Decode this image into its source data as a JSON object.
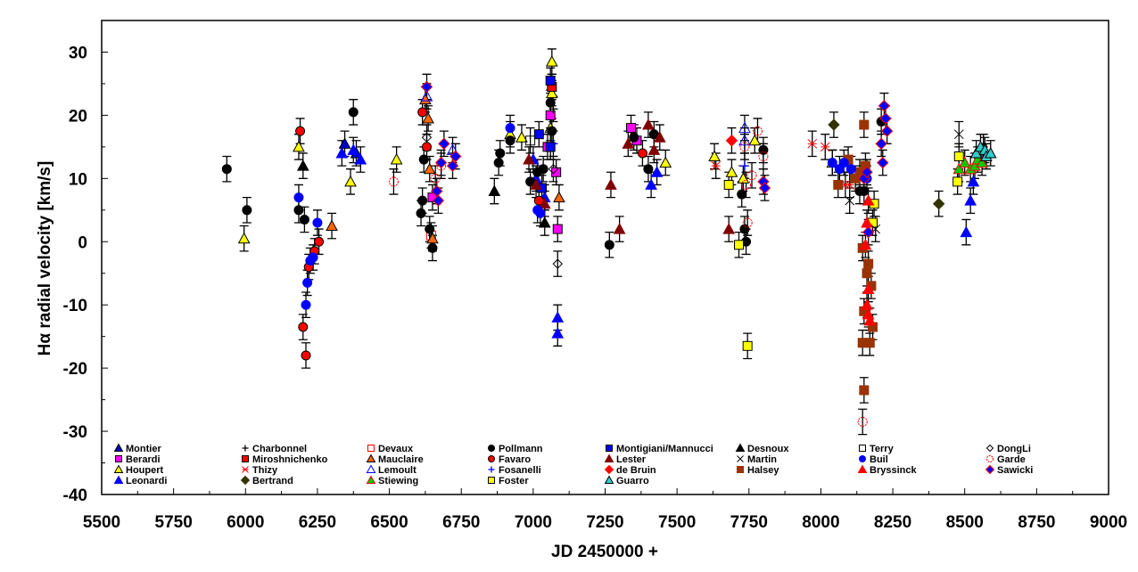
{
  "chart_data": {
    "type": "scatter",
    "title": "",
    "xlabel": "JD 2450000 +",
    "ylabel": "Hα  radial velocity [km/s]",
    "xlim": [
      5500,
      9000
    ],
    "ylim": [
      -40,
      35
    ],
    "xticks": [
      5500,
      5750,
      6000,
      6250,
      6500,
      6750,
      7000,
      7250,
      7500,
      7750,
      8000,
      8250,
      8500,
      8750,
      9000
    ],
    "yticks": [
      -40,
      -30,
      -20,
      -10,
      0,
      10,
      20,
      30
    ],
    "xtick_labels": [
      "5500",
      "5750",
      "6000",
      "6250",
      "6500",
      "6750",
      "7000",
      "7250",
      "7500",
      "7750",
      "8000",
      "8250",
      "8500",
      "8750",
      "9000"
    ],
    "ytick_labels": [
      "-40",
      "-30",
      "-20",
      "-10",
      "0",
      "10",
      "20",
      "30"
    ],
    "grid": false,
    "legend_position": "bottom-inside",
    "error_bar_km_s": 2,
    "series": [
      {
        "name": "Montier",
        "marker": "triangle",
        "fill": "#0000cc",
        "stroke": "#000000",
        "points": [
          [
            6345,
            15.5
          ],
          [
            6385,
            14
          ]
        ]
      },
      {
        "name": "Berardi",
        "marker": "square",
        "fill": "#ff00ff",
        "stroke": "#000000",
        "points": [
          [
            6650,
            7
          ],
          [
            7050,
            15
          ],
          [
            7080,
            11
          ],
          [
            7060,
            20
          ],
          [
            7085,
            2
          ],
          [
            7340,
            18
          ],
          [
            7360,
            16
          ]
        ]
      },
      {
        "name": "Houpert",
        "marker": "triangle",
        "fill": "#ffff00",
        "stroke": "#000000",
        "points": [
          [
            5995,
            0.5
          ],
          [
            6185,
            15
          ],
          [
            6365,
            9.5
          ],
          [
            6525,
            13
          ],
          [
            6920,
            17
          ],
          [
            6960,
            16.5
          ],
          [
            7065,
            28.5
          ],
          [
            7065,
            23.5
          ],
          [
            7060,
            18
          ],
          [
            7460,
            12.5
          ],
          [
            7630,
            13.5
          ],
          [
            7690,
            11
          ],
          [
            7730,
            10
          ],
          [
            7770,
            16
          ],
          [
            8040,
            12.5
          ]
        ]
      },
      {
        "name": "Leonardi",
        "marker": "triangle",
        "fill": "#0000ff",
        "stroke": "#0000ff",
        "points": [
          [
            6335,
            14
          ],
          [
            6375,
            14.5
          ],
          [
            6400,
            13
          ],
          [
            7000,
            13
          ],
          [
            7010,
            10
          ],
          [
            7040,
            7
          ],
          [
            7085,
            -12
          ],
          [
            7085,
            -14.5
          ],
          [
            7410,
            9
          ],
          [
            7430,
            11
          ],
          [
            8505,
            1.5
          ],
          [
            8520,
            6.5
          ],
          [
            8530,
            9.5
          ]
        ]
      },
      {
        "name": "Charbonnel",
        "marker": "plus",
        "fill": "#000000",
        "stroke": "#000000",
        "points": [
          [
            7070,
            21
          ],
          [
            8565,
            15
          ]
        ]
      },
      {
        "name": "Miroshnichenko",
        "marker": "square",
        "fill": "#ff0000",
        "stroke": "#000000",
        "points": [
          [
            7065,
            24.5
          ]
        ]
      },
      {
        "name": "Thizy",
        "marker": "x-star",
        "fill": "#ff0000",
        "stroke": "#ff0000",
        "points": [
          [
            7635,
            12
          ],
          [
            7970,
            15.5
          ],
          [
            8015,
            15
          ],
          [
            8085,
            9
          ],
          [
            8100,
            9
          ]
        ]
      },
      {
        "name": "Bertrand",
        "marker": "diamond",
        "fill": "#333300",
        "stroke": "#333300",
        "points": [
          [
            8045,
            18.5
          ],
          [
            8410,
            6
          ]
        ]
      },
      {
        "name": "Devaux",
        "marker": "open-square",
        "fill": "none",
        "stroke": "#ff0000",
        "points": [
          [
            6645,
            1
          ]
        ]
      },
      {
        "name": "Mauclaire",
        "marker": "triangle",
        "fill": "#ff6600",
        "stroke": "#000000",
        "points": [
          [
            6300,
            2.5
          ],
          [
            6625,
            22.5
          ],
          [
            6635,
            19.5
          ],
          [
            6640,
            11.5
          ],
          [
            6650,
            0.5
          ],
          [
            7090,
            7
          ]
        ]
      },
      {
        "name": "Lemoult",
        "marker": "open-triangle",
        "fill": "none",
        "stroke": "#0000ff",
        "points": [
          [
            6630,
            23
          ],
          [
            6720,
            14.5
          ],
          [
            7735,
            18
          ],
          [
            7735,
            16
          ]
        ]
      },
      {
        "name": "Stiewing",
        "marker": "triangle",
        "fill": "#00cc00",
        "stroke": "#ff0000",
        "points": [
          [
            8480,
            11.5
          ],
          [
            8500,
            12.5
          ],
          [
            8520,
            11.5
          ],
          [
            8535,
            12
          ],
          [
            8545,
            13
          ],
          [
            8560,
            12.5
          ]
        ]
      },
      {
        "name": "Pollmann",
        "marker": "circle",
        "fill": "#000000",
        "stroke": "#000000",
        "points": [
          [
            5935,
            11.5
          ],
          [
            6005,
            5
          ],
          [
            6185,
            5
          ],
          [
            6205,
            3.5
          ],
          [
            6375,
            20.5
          ],
          [
            6610,
            4.5
          ],
          [
            6615,
            6.5
          ],
          [
            6620,
            13
          ],
          [
            6640,
            2
          ],
          [
            6650,
            -1
          ],
          [
            6880,
            12.5
          ],
          [
            6885,
            14
          ],
          [
            6920,
            16
          ],
          [
            6990,
            9.5
          ],
          [
            7015,
            11
          ],
          [
            7035,
            11.5
          ],
          [
            7060,
            22
          ],
          [
            7065,
            17.5
          ],
          [
            7265,
            -0.5
          ],
          [
            7350,
            16.5
          ],
          [
            7420,
            17
          ],
          [
            7400,
            11.5
          ],
          [
            7725,
            7.5
          ],
          [
            7735,
            2
          ],
          [
            7740,
            0
          ],
          [
            7800,
            14.5
          ],
          [
            8135,
            8
          ],
          [
            8150,
            8
          ],
          [
            8210,
            19
          ]
        ]
      },
      {
        "name": "Favaro",
        "marker": "circle",
        "fill": "#ff0000",
        "stroke": "#000000",
        "points": [
          [
            6190,
            17.5
          ],
          [
            6200,
            -13.5
          ],
          [
            6210,
            -18
          ],
          [
            6220,
            -4
          ],
          [
            6240,
            -1.5
          ],
          [
            6255,
            0
          ],
          [
            6615,
            20.5
          ],
          [
            6630,
            15
          ],
          [
            7020,
            6.5
          ],
          [
            7380,
            14
          ]
        ]
      },
      {
        "name": "Fosanelli",
        "marker": "plus",
        "fill": "#0000ff",
        "stroke": "#0000ff",
        "points": [
          [
            7070,
            15.5
          ],
          [
            7735,
            12
          ]
        ]
      },
      {
        "name": "Foster",
        "marker": "square",
        "fill": "#ffff00",
        "stroke": "#000000",
        "points": [
          [
            7680,
            9
          ],
          [
            7715,
            -0.5
          ],
          [
            7745,
            -16.5
          ],
          [
            8185,
            6
          ],
          [
            8180,
            3
          ],
          [
            8475,
            9.5
          ],
          [
            8480,
            13.5
          ]
        ]
      },
      {
        "name": "Montigiani/Mannucci",
        "marker": "square",
        "fill": "#0000ff",
        "stroke": "#000000",
        "points": [
          [
            7020,
            17
          ],
          [
            7030,
            8.5
          ],
          [
            7060,
            25.5
          ],
          [
            7060,
            15
          ]
        ]
      },
      {
        "name": "Lester",
        "marker": "triangle",
        "fill": "#800000",
        "stroke": "#800000",
        "points": [
          [
            6985,
            13
          ],
          [
            7010,
            9
          ],
          [
            7040,
            6
          ],
          [
            7270,
            9
          ],
          [
            7300,
            2
          ],
          [
            7330,
            15.5
          ],
          [
            7400,
            18.5
          ],
          [
            7420,
            14.5
          ],
          [
            7440,
            16.5
          ],
          [
            7680,
            2
          ]
        ]
      },
      {
        "name": "de Bruin",
        "marker": "diamond",
        "fill": "#ff0000",
        "stroke": "#ff0000",
        "points": [
          [
            7690,
            16
          ]
        ]
      },
      {
        "name": "Guarro",
        "marker": "triangle",
        "fill": "#33cccc",
        "stroke": "#000000",
        "points": [
          [
            8540,
            14
          ],
          [
            8555,
            15
          ],
          [
            8570,
            14.5
          ],
          [
            8575,
            13.5
          ],
          [
            8590,
            14
          ]
        ]
      },
      {
        "name": "Desnoux",
        "marker": "triangle",
        "fill": "#000000",
        "stroke": "#000000",
        "points": [
          [
            6200,
            12
          ],
          [
            6865,
            8
          ],
          [
            7040,
            3
          ]
        ]
      },
      {
        "name": "Martin",
        "marker": "x",
        "fill": "#000000",
        "stroke": "#000000",
        "points": [
          [
            8100,
            6.5
          ],
          [
            8190,
            2
          ],
          [
            8480,
            17
          ]
        ]
      },
      {
        "name": "Halsey",
        "marker": "square",
        "fill": "#993300",
        "stroke": "#993300",
        "points": [
          [
            8060,
            9
          ],
          [
            8095,
            13
          ],
          [
            8120,
            10
          ],
          [
            8150,
            18.5
          ],
          [
            8155,
            12
          ],
          [
            8135,
            11
          ],
          [
            8145,
            -1
          ],
          [
            8150,
            -11
          ],
          [
            8160,
            -5
          ],
          [
            8165,
            -3.5
          ],
          [
            8170,
            -16
          ],
          [
            8175,
            -7
          ],
          [
            8145,
            -16
          ],
          [
            8150,
            -23.5
          ],
          [
            8180,
            -13.5
          ]
        ]
      },
      {
        "name": "Terry",
        "marker": "open-square",
        "fill": "none",
        "stroke": "#000000",
        "points": [
          [
            6990,
            16
          ]
        ]
      },
      {
        "name": "Buil",
        "marker": "circle",
        "fill": "#0000ff",
        "stroke": "#0000ff",
        "points": [
          [
            6185,
            7
          ],
          [
            6210,
            -10
          ],
          [
            6215,
            -6.5
          ],
          [
            6225,
            -3
          ],
          [
            6235,
            -2.5
          ],
          [
            6250,
            3
          ],
          [
            6920,
            18
          ],
          [
            7015,
            5
          ],
          [
            7025,
            4.5
          ],
          [
            8040,
            12.5
          ],
          [
            8065,
            11.5
          ],
          [
            8080,
            12.5
          ],
          [
            8105,
            11.5
          ],
          [
            8160,
            10
          ]
        ]
      },
      {
        "name": "Bryssinck",
        "marker": "triangle",
        "fill": "#ff0000",
        "stroke": "#ff0000",
        "points": [
          [
            8160,
            3
          ],
          [
            8155,
            -0.5
          ],
          [
            8160,
            -10
          ],
          [
            8165,
            -7.5
          ],
          [
            8165,
            -11.5
          ],
          [
            8170,
            -12.5
          ],
          [
            8165,
            6.5
          ]
        ]
      },
      {
        "name": "DongLi",
        "marker": "open-diamond",
        "fill": "none",
        "stroke": "#000000",
        "points": [
          [
            6630,
            16.5
          ],
          [
            7085,
            -3.5
          ],
          [
            7070,
            11.5
          ]
        ]
      },
      {
        "name": "Garde",
        "marker": "open-circle",
        "fill": "none",
        "stroke": "#ff0000",
        "points": [
          [
            6515,
            9.5
          ],
          [
            6660,
            10
          ],
          [
            6680,
            12
          ],
          [
            7735,
            15
          ],
          [
            7740,
            9
          ],
          [
            7745,
            3
          ],
          [
            7760,
            10.5
          ],
          [
            7780,
            17.5
          ],
          [
            7800,
            13.5
          ],
          [
            8145,
            -28.5
          ]
        ]
      },
      {
        "name": "Sawicki",
        "marker": "diamond",
        "fill": "#0000ff",
        "stroke": "#ff0000",
        "points": [
          [
            6630,
            24.5
          ],
          [
            6670,
            6.5
          ],
          [
            6680,
            12.5
          ],
          [
            6690,
            15.5
          ],
          [
            6720,
            12
          ],
          [
            6730,
            13.5
          ],
          [
            6665,
            8
          ],
          [
            7800,
            9.5
          ],
          [
            7805,
            8.5
          ],
          [
            8150,
            10
          ],
          [
            8160,
            11
          ],
          [
            8165,
            1.5
          ],
          [
            8210,
            15.5
          ],
          [
            8215,
            12.5
          ],
          [
            8220,
            21.5
          ],
          [
            8225,
            19.5
          ],
          [
            8230,
            17.5
          ]
        ]
      }
    ],
    "legend": {
      "columns": [
        [
          "Montier",
          "Berardi",
          "Houpert",
          "Leonardi"
        ],
        [
          "Charbonnel",
          "Miroshnichenko",
          "Thizy",
          "Bertrand"
        ],
        [
          "Devaux",
          "Mauclaire",
          "Lemoult",
          "Stiewing"
        ],
        [
          "Pollmann",
          "Favaro",
          "Fosanelli",
          "Foster"
        ],
        [
          "Montigiani/Mannucci",
          "Lester",
          "de Bruin",
          "Guarro"
        ],
        [
          "Desnoux",
          "Martin",
          "Halsey"
        ],
        [
          "Terry",
          "Buil",
          "Bryssinck"
        ],
        [
          "DongLi",
          "Garde",
          "Sawicki"
        ]
      ]
    }
  }
}
